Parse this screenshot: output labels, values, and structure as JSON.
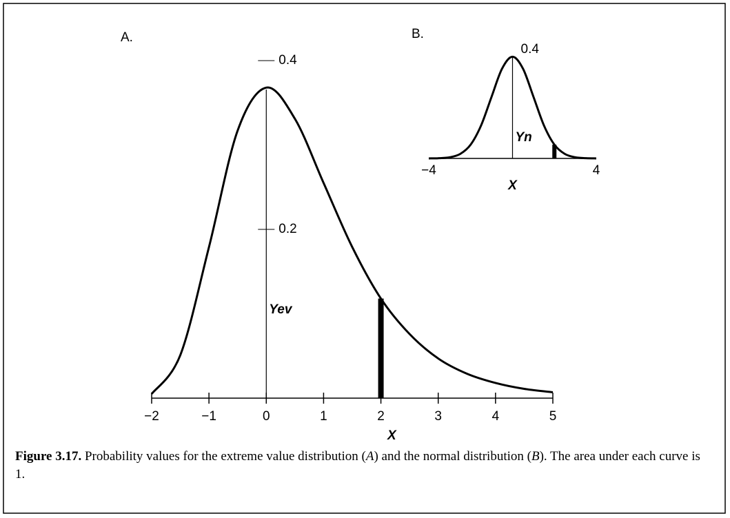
{
  "chart_data": [
    {
      "type": "line",
      "panel_label": "A.",
      "y_label": "Yev",
      "x_label": "X",
      "x": [
        -2,
        -1.5,
        -1,
        -0.5,
        0,
        0.5,
        1,
        1.5,
        2,
        2.5,
        3,
        3.5,
        4,
        4.5,
        5
      ],
      "values": [
        0.005,
        0.051,
        0.179,
        0.317,
        0.368,
        0.331,
        0.255,
        0.179,
        0.118,
        0.076,
        0.047,
        0.029,
        0.018,
        0.011,
        0.007
      ],
      "highlight_x": 2,
      "color": "#000000",
      "xlim": [
        -2,
        5
      ],
      "ylim": [
        0,
        0.4
      ],
      "xticks": [
        {
          "value": -2,
          "label": "−2"
        },
        {
          "value": -1,
          "label": "−1"
        },
        0,
        1,
        2,
        3,
        4,
        5
      ],
      "yticks": [
        0.2,
        0.4
      ]
    },
    {
      "type": "line",
      "panel_label": "B.",
      "y_label": "Yn",
      "x_label": "X",
      "x": [
        -4,
        -3.5,
        -3,
        -2.5,
        -2,
        -1.5,
        -1,
        -0.5,
        0,
        0.5,
        1,
        1.5,
        2,
        2.5,
        3,
        3.5,
        4
      ],
      "values": [
        0.0001,
        0.0009,
        0.0044,
        0.0175,
        0.054,
        0.1295,
        0.242,
        0.3521,
        0.3989,
        0.3521,
        0.242,
        0.1295,
        0.054,
        0.0175,
        0.0044,
        0.0009,
        0.0001
      ],
      "highlight_x": 2,
      "color": "#000000",
      "xlim": [
        -4,
        4
      ],
      "ylim": [
        0,
        0.4
      ],
      "xticks": [
        {
          "value": -4,
          "label": "−4"
        },
        4
      ],
      "yticks": [
        0.4
      ]
    }
  ],
  "caption": {
    "label": "Figure 3.17.",
    "segments": [
      "Probability values for the extreme value distribution (",
      "A",
      ") and the normal distribution (",
      "B",
      "). The area under each curve is 1."
    ]
  }
}
